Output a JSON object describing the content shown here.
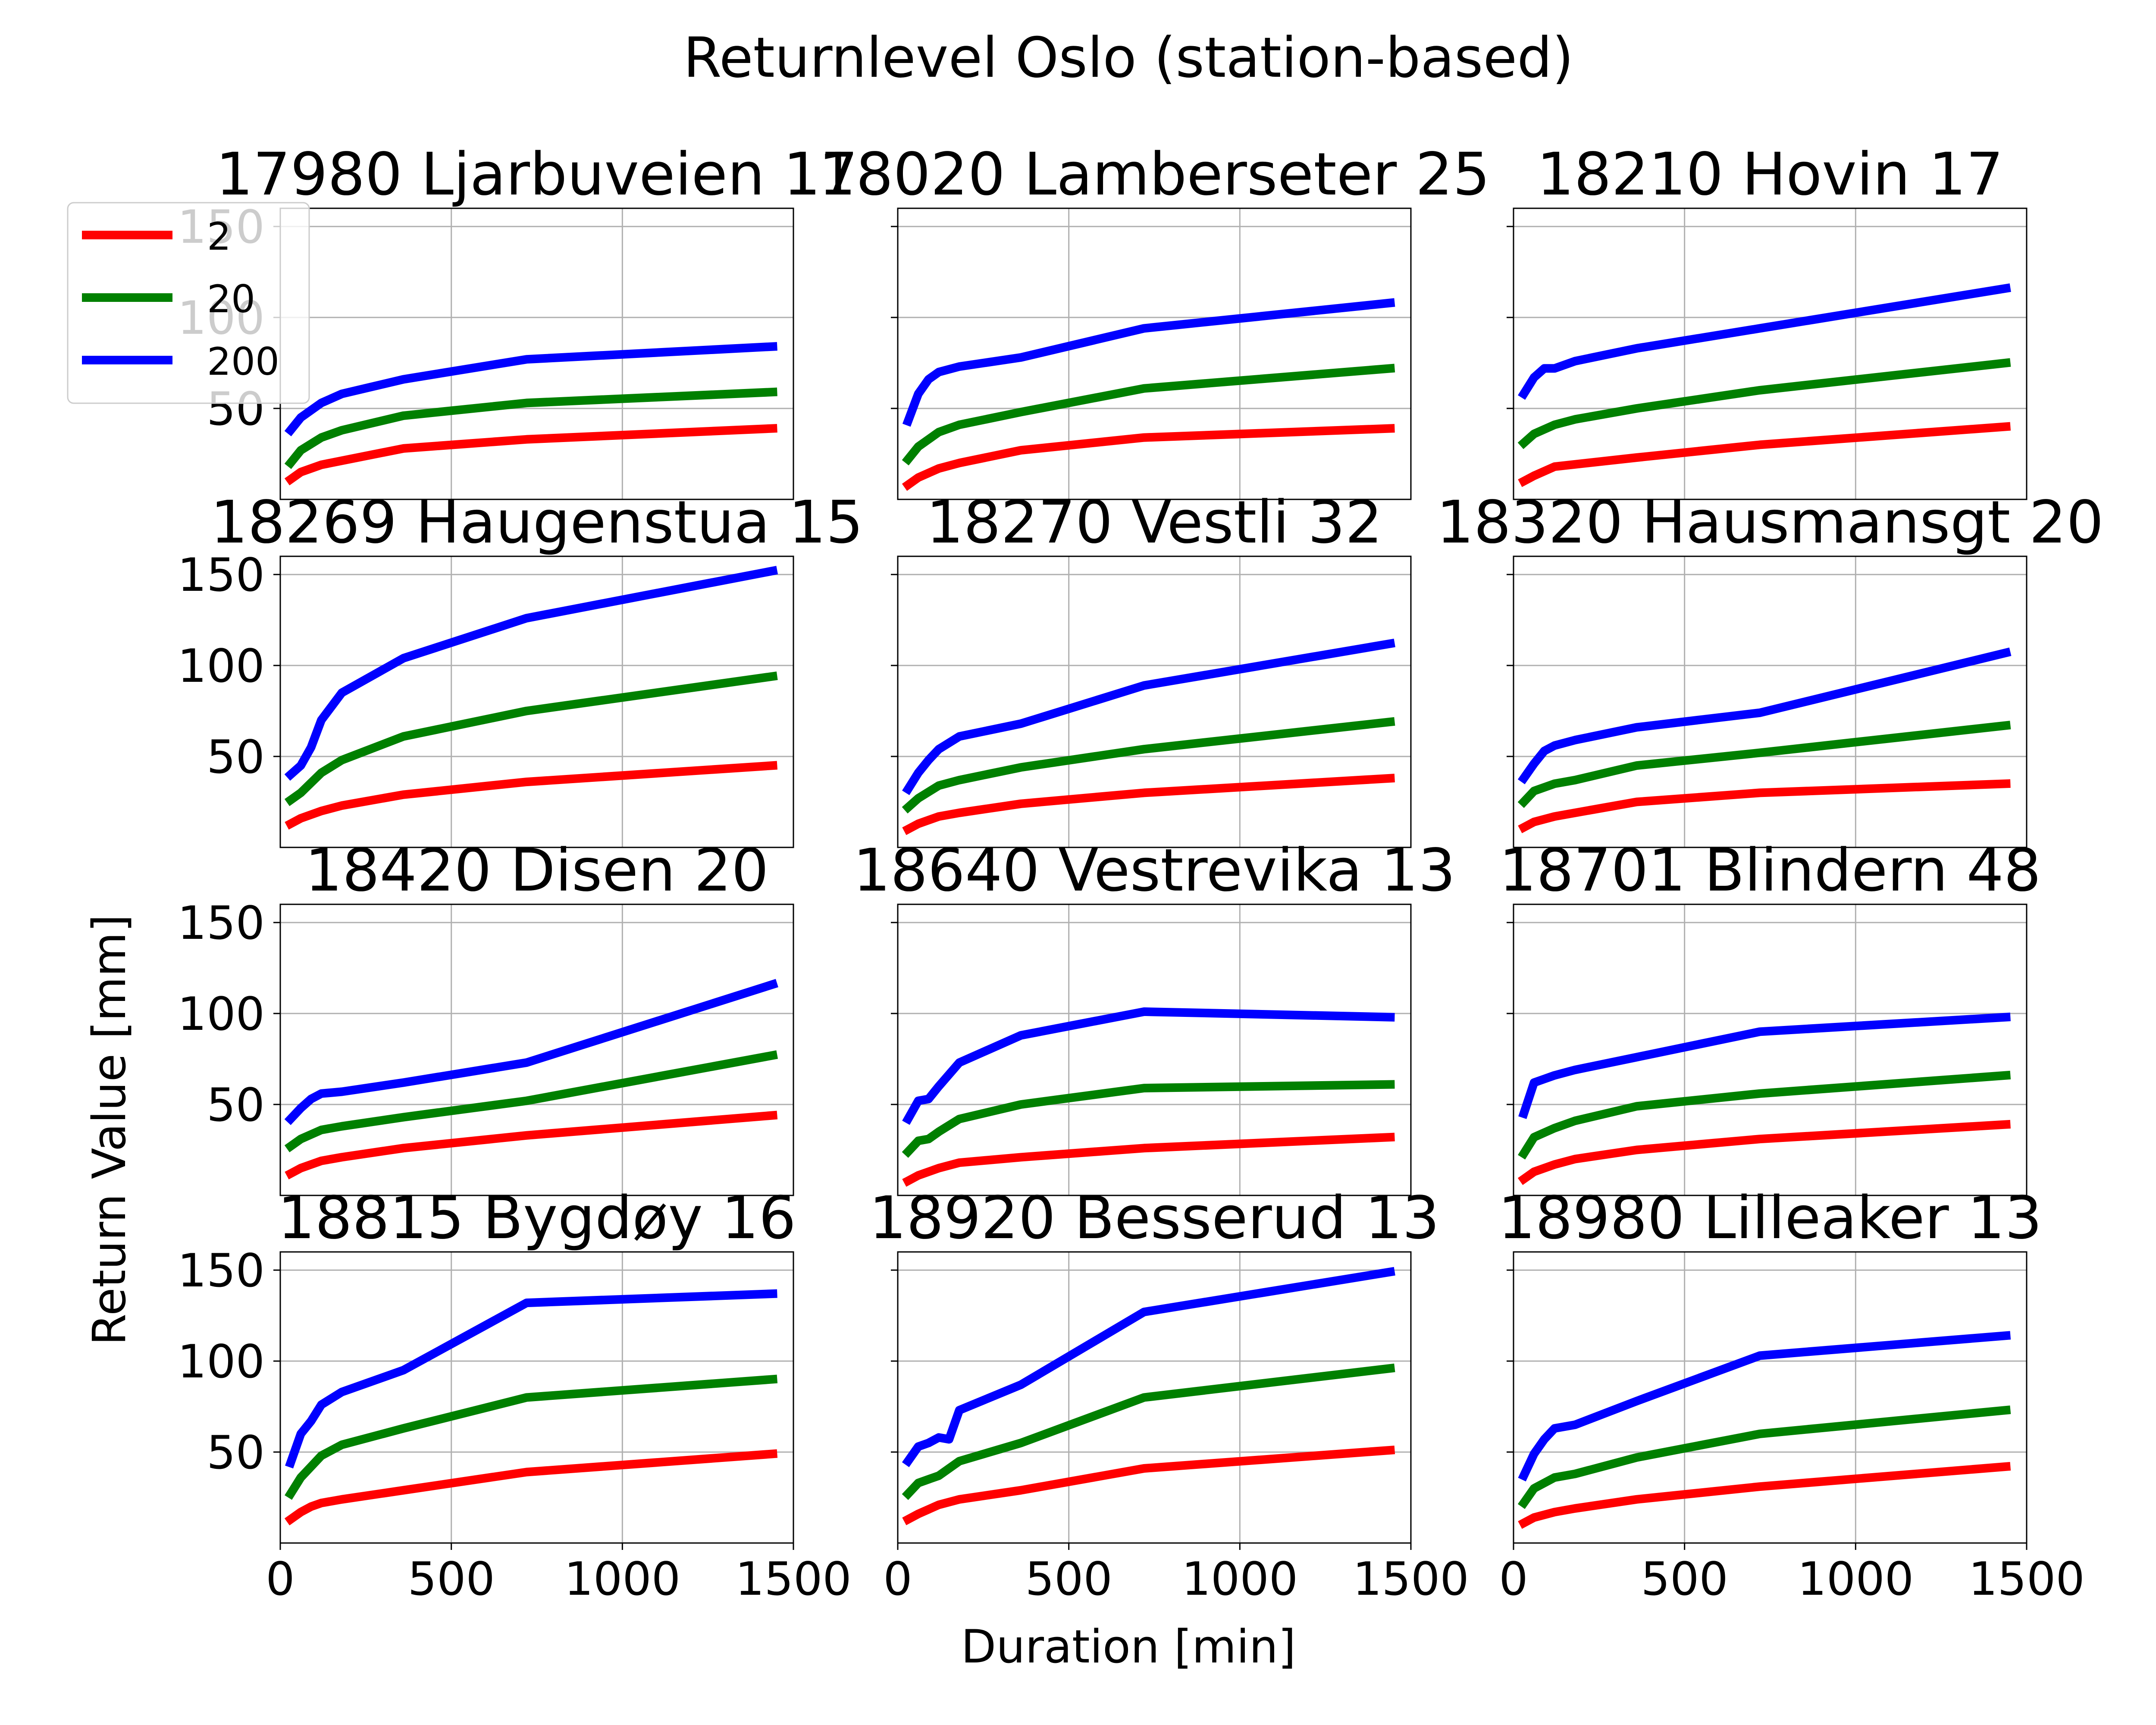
{
  "chart_data": {
    "type": "line",
    "title": "Returnlevel Oslo (station-based)",
    "xlabel": "Duration [min]",
    "ylabel": "Return Value [mm]",
    "xlim": [
      0,
      1500
    ],
    "ylim": [
      0,
      160
    ],
    "xticks": [
      0,
      500,
      1000,
      1500
    ],
    "yticks": [
      50,
      100,
      150
    ],
    "grid": true,
    "legend": {
      "position": "top-left",
      "entries": [
        "2",
        "20",
        "200"
      ]
    },
    "colors": {
      "2": "#ff0000",
      "20": "#008000",
      "200": "#0000ff"
    },
    "panels": [
      {
        "title": "17980 Ljarbuveien 17",
        "series": [
          {
            "name": "2",
            "x": [
              30,
              60,
              120,
              360,
              720,
              1440
            ],
            "y": [
              11,
              15,
              19,
              28,
              33,
              39
            ]
          },
          {
            "name": "20",
            "x": [
              30,
              60,
              120,
              180,
              360,
              720,
              1440
            ],
            "y": [
              20,
              27,
              34,
              38,
              46,
              53,
              59
            ]
          },
          {
            "name": "200",
            "x": [
              30,
              60,
              120,
              180,
              360,
              720,
              1440
            ],
            "y": [
              38,
              45,
              53,
              58,
              66,
              77,
              84
            ]
          }
        ]
      },
      {
        "title": "18020 Lamberseter 25",
        "series": [
          {
            "name": "2",
            "x": [
              30,
              60,
              120,
              180,
              360,
              720,
              1440
            ],
            "y": [
              8,
              12,
              17,
              20,
              27,
              34,
              39
            ]
          },
          {
            "name": "20",
            "x": [
              30,
              60,
              120,
              180,
              360,
              720,
              1440
            ],
            "y": [
              22,
              29,
              37,
              41,
              48,
              61,
              72
            ]
          },
          {
            "name": "200",
            "x": [
              30,
              60,
              90,
              120,
              180,
              360,
              720,
              1440
            ],
            "y": [
              43,
              58,
              66,
              70,
              73,
              78,
              94,
              108
            ]
          }
        ]
      },
      {
        "title": "18210 Hovin 17",
        "series": [
          {
            "name": "2",
            "x": [
              30,
              60,
              120,
              360,
              720,
              1440
            ],
            "y": [
              10,
              13,
              18,
              23,
              30,
              40
            ]
          },
          {
            "name": "20",
            "x": [
              30,
              60,
              120,
              180,
              360,
              720,
              1440
            ],
            "y": [
              31,
              36,
              41,
              44,
              50,
              60,
              75
            ]
          },
          {
            "name": "200",
            "x": [
              30,
              60,
              90,
              120,
              180,
              360,
              720,
              1440
            ],
            "y": [
              58,
              67,
              72,
              72,
              76,
              83,
              94,
              116
            ]
          }
        ]
      },
      {
        "title": "18269 Haugenstua 15",
        "series": [
          {
            "name": "2",
            "x": [
              30,
              60,
              120,
              180,
              360,
              720,
              1440
            ],
            "y": [
              13,
              16,
              20,
              23,
              29,
              36,
              45
            ]
          },
          {
            "name": "20",
            "x": [
              30,
              60,
              120,
              180,
              360,
              720,
              1440
            ],
            "y": [
              26,
              30,
              41,
              48,
              61,
              75,
              94
            ]
          },
          {
            "name": "200",
            "x": [
              30,
              60,
              90,
              120,
              180,
              360,
              720,
              1440
            ],
            "y": [
              40,
              45,
              55,
              70,
              85,
              104,
              126,
              152
            ]
          }
        ]
      },
      {
        "title": "18270 Vestli 32",
        "series": [
          {
            "name": "2",
            "x": [
              30,
              60,
              120,
              180,
              360,
              720,
              1440
            ],
            "y": [
              10,
              13,
              17,
              19,
              24,
              30,
              38
            ]
          },
          {
            "name": "20",
            "x": [
              30,
              60,
              120,
              180,
              360,
              720,
              1440
            ],
            "y": [
              22,
              27,
              34,
              37,
              44,
              54,
              69
            ]
          },
          {
            "name": "200",
            "x": [
              30,
              60,
              90,
              120,
              180,
              360,
              720,
              1440
            ],
            "y": [
              32,
              41,
              48,
              54,
              61,
              68,
              89,
              112
            ]
          }
        ]
      },
      {
        "title": "18320 Hausmansgt 20",
        "series": [
          {
            "name": "2",
            "x": [
              30,
              60,
              120,
              180,
              360,
              720,
              1440
            ],
            "y": [
              11,
              14,
              17,
              19,
              25,
              30,
              35
            ]
          },
          {
            "name": "20",
            "x": [
              30,
              60,
              120,
              180,
              360,
              720,
              1440
            ],
            "y": [
              25,
              31,
              35,
              37,
              45,
              52,
              67
            ]
          },
          {
            "name": "200",
            "x": [
              30,
              60,
              90,
              120,
              180,
              360,
              720,
              1440
            ],
            "y": [
              38,
              46,
              53,
              56,
              59,
              66,
              74,
              107
            ]
          }
        ]
      },
      {
        "title": "18420 Disen 20",
        "series": [
          {
            "name": "2",
            "x": [
              30,
              60,
              120,
              180,
              360,
              720,
              1440
            ],
            "y": [
              12,
              15,
              19,
              21,
              26,
              33,
              44
            ]
          },
          {
            "name": "20",
            "x": [
              30,
              60,
              120,
              180,
              360,
              720,
              1440
            ],
            "y": [
              27,
              31,
              36,
              38,
              43,
              52,
              77
            ]
          },
          {
            "name": "200",
            "x": [
              30,
              60,
              90,
              120,
              180,
              360,
              720,
              1440
            ],
            "y": [
              42,
              48,
              53,
              56,
              57,
              62,
              73,
              116
            ]
          }
        ]
      },
      {
        "title": "18640 Vestrevika 13",
        "series": [
          {
            "name": "2",
            "x": [
              30,
              60,
              120,
              180,
              360,
              720,
              1440
            ],
            "y": [
              8,
              11,
              15,
              18,
              21,
              26,
              32
            ]
          },
          {
            "name": "20",
            "x": [
              30,
              60,
              90,
              120,
              180,
              360,
              720,
              1440
            ],
            "y": [
              24,
              30,
              31,
              35,
              42,
              50,
              59,
              61
            ]
          },
          {
            "name": "200",
            "x": [
              30,
              60,
              90,
              120,
              180,
              360,
              720,
              1440
            ],
            "y": [
              42,
              52,
              53,
              60,
              73,
              88,
              101,
              98
            ]
          }
        ]
      },
      {
        "title": "18701 Blindern 48",
        "series": [
          {
            "name": "2",
            "x": [
              30,
              60,
              120,
              180,
              360,
              720,
              1440
            ],
            "y": [
              9,
              13,
              17,
              20,
              25,
              31,
              39
            ]
          },
          {
            "name": "20",
            "x": [
              30,
              60,
              120,
              180,
              360,
              720,
              1440
            ],
            "y": [
              23,
              32,
              37,
              41,
              49,
              56,
              66
            ]
          },
          {
            "name": "200",
            "x": [
              30,
              60,
              90,
              120,
              180,
              360,
              720,
              1440
            ],
            "y": [
              45,
              62,
              64,
              66,
              69,
              76,
              90,
              98
            ]
          }
        ]
      },
      {
        "title": "18815 Bygdøy 16",
        "series": [
          {
            "name": "2",
            "x": [
              30,
              60,
              90,
              120,
              180,
              360,
              720,
              1440
            ],
            "y": [
              13,
              17,
              20,
              22,
              24,
              29,
              39,
              49
            ]
          },
          {
            "name": "20",
            "x": [
              30,
              60,
              90,
              120,
              180,
              360,
              720,
              1440
            ],
            "y": [
              27,
              36,
              42,
              48,
              54,
              63,
              80,
              90
            ]
          },
          {
            "name": "200",
            "x": [
              30,
              60,
              90,
              120,
              180,
              360,
              720,
              1440
            ],
            "y": [
              44,
              60,
              67,
              76,
              83,
              95,
              132,
              137
            ]
          }
        ]
      },
      {
        "title": "18920 Besserud 13",
        "series": [
          {
            "name": "2",
            "x": [
              30,
              60,
              120,
              180,
              360,
              720,
              1440
            ],
            "y": [
              13,
              16,
              21,
              24,
              29,
              41,
              51
            ]
          },
          {
            "name": "20",
            "x": [
              30,
              60,
              90,
              120,
              180,
              360,
              720,
              1440
            ],
            "y": [
              27,
              33,
              35,
              37,
              45,
              55,
              80,
              96
            ]
          },
          {
            "name": "200",
            "x": [
              30,
              60,
              90,
              120,
              150,
              180,
              360,
              720,
              1440
            ],
            "y": [
              45,
              53,
              55,
              58,
              57,
              73,
              87,
              127,
              149
            ]
          }
        ]
      },
      {
        "title": "18980 Lilleaker 13",
        "series": [
          {
            "name": "2",
            "x": [
              30,
              60,
              120,
              180,
              360,
              720,
              1440
            ],
            "y": [
              11,
              14,
              17,
              19,
              24,
              31,
              42
            ]
          },
          {
            "name": "20",
            "x": [
              30,
              60,
              120,
              180,
              360,
              720,
              1440
            ],
            "y": [
              22,
              30,
              36,
              38,
              47,
              60,
              73
            ]
          },
          {
            "name": "200",
            "x": [
              30,
              60,
              90,
              120,
              180,
              360,
              720,
              1440
            ],
            "y": [
              37,
              49,
              57,
              63,
              65,
              78,
              103,
              114
            ]
          }
        ]
      }
    ]
  }
}
